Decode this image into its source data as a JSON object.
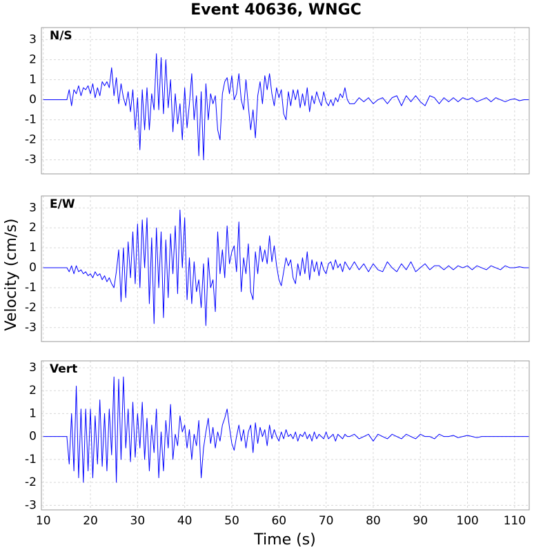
{
  "title": "Event 40636, WNGC",
  "ylabel": "Velocity (cm/s)",
  "xlabel": "Time (s)",
  "chart_data": [
    {
      "type": "line",
      "title": "N/S",
      "color": "#0000ff",
      "grid": true,
      "xlim": [
        9.6,
        113.1
      ],
      "xticks": [
        10,
        20,
        30,
        40,
        50,
        60,
        70,
        80,
        90,
        100,
        110
      ],
      "ylim": [
        -3.7,
        3.6
      ],
      "yticks": [
        -3,
        -2,
        -1,
        0,
        1,
        2,
        3
      ],
      "x": [
        10,
        12,
        14,
        15,
        15.5,
        16,
        16.5,
        17,
        17.5,
        18,
        18.5,
        19,
        19.5,
        20,
        20.5,
        21,
        21.5,
        22,
        22.5,
        23,
        23.5,
        24,
        24.5,
        25,
        25.5,
        26,
        26.5,
        27,
        27.5,
        28,
        28.5,
        29,
        29.5,
        30,
        30.5,
        31,
        31.5,
        32,
        32.5,
        33,
        33.5,
        34,
        34.5,
        35,
        35.5,
        36,
        36.5,
        37,
        37.5,
        38,
        38.5,
        39,
        39.5,
        40,
        40.5,
        41,
        41.5,
        42,
        42.5,
        43,
        43.5,
        44,
        44.5,
        45,
        45.5,
        46,
        46.5,
        47,
        47.5,
        48,
        48.5,
        49,
        49.5,
        50,
        50.5,
        51,
        51.5,
        52,
        52.5,
        53,
        53.5,
        54,
        54.5,
        55,
        55.5,
        56,
        56.5,
        57,
        57.5,
        58,
        58.5,
        59,
        59.5,
        60,
        60.5,
        61,
        61.5,
        62,
        62.5,
        63,
        63.5,
        64,
        64.5,
        65,
        65.5,
        66,
        66.5,
        67,
        67.5,
        68,
        68.5,
        69,
        69.5,
        70,
        70.5,
        71,
        71.5,
        72,
        72.5,
        73,
        73.5,
        74,
        74.5,
        75,
        76,
        77,
        78,
        79,
        80,
        81,
        82,
        83,
        84,
        85,
        86,
        87,
        88,
        89,
        90,
        91,
        92,
        93,
        94,
        95,
        96,
        97,
        98,
        99,
        100,
        101,
        102,
        103,
        104,
        105,
        106,
        107,
        108,
        109,
        110,
        111,
        112,
        113
      ],
      "values": [
        0,
        0,
        0,
        0,
        0.5,
        -0.3,
        0.5,
        0.3,
        0.7,
        0.2,
        0.6,
        0.5,
        0.7,
        0.3,
        0.8,
        0.1,
        0.6,
        0.2,
        0.9,
        0.7,
        0.9,
        0.6,
        1.6,
        0.2,
        1.1,
        -0.2,
        0.8,
        0.1,
        -0.3,
        0.4,
        -0.6,
        0.5,
        -1.5,
        0.1,
        -2.5,
        0.5,
        -1.5,
        0.6,
        -1.5,
        0.3,
        -0.5,
        2.3,
        -0.5,
        2.1,
        -0.7,
        2.0,
        -0.4,
        1.0,
        -1.6,
        0.3,
        -1.2,
        -0.2,
        -2.0,
        0.6,
        -1.4,
        -0.2,
        1.3,
        -1.0,
        0.2,
        -2.8,
        0.4,
        -3.0,
        0.8,
        -1.0,
        0.3,
        -0.2,
        0.2,
        -1.5,
        -2.0,
        0.3,
        0.9,
        1.1,
        0.3,
        1.2,
        0.0,
        0.3,
        1.3,
        0.0,
        -0.5,
        1.0,
        -0.3,
        -1.5,
        -0.5,
        -1.9,
        0.2,
        0.9,
        -0.2,
        1.2,
        0.5,
        1.3,
        0.3,
        -0.3,
        0.6,
        0.1,
        0.5,
        -0.7,
        -1.0,
        0.4,
        -0.3,
        0.5,
        0.0,
        0.5,
        -0.4,
        0.3,
        -0.3,
        0.6,
        -0.6,
        0.2,
        -0.2,
        0.4,
        0.0,
        -0.3,
        0.4,
        -0.1,
        -0.3,
        0.0,
        -0.3,
        0.1,
        -0.1,
        0.3,
        0.1,
        0.6,
        0.0,
        -0.2,
        -0.2,
        0.1,
        -0.1,
        0.1,
        -0.2,
        0.0,
        0.1,
        -0.2,
        0.1,
        0.2,
        -0.3,
        0.2,
        -0.1,
        0.2,
        -0.1,
        -0.3,
        0.2,
        0.1,
        -0.2,
        0.1,
        -0.1,
        0.1,
        -0.1,
        0.1,
        0.0,
        0.1,
        -0.1,
        0.0,
        0.1,
        -0.1,
        0.1,
        0.0,
        -0.1,
        0.0,
        0.05,
        -0.05,
        0.0,
        0.0
      ]
    },
    {
      "type": "line",
      "title": "E/W",
      "color": "#0000ff",
      "grid": true,
      "xlim": [
        9.6,
        113.1
      ],
      "xticks": [
        10,
        20,
        30,
        40,
        50,
        60,
        70,
        80,
        90,
        100,
        110
      ],
      "ylim": [
        -3.7,
        3.6
      ],
      "yticks": [
        -3,
        -2,
        -1,
        0,
        1,
        2,
        3
      ],
      "x": [
        10,
        12,
        14,
        15,
        15.5,
        16,
        16.5,
        17,
        17.5,
        18,
        18.5,
        19,
        19.5,
        20,
        20.5,
        21,
        21.5,
        22,
        22.5,
        23,
        23.5,
        24,
        24.5,
        25,
        25.5,
        26,
        26.5,
        27,
        27.5,
        28,
        28.5,
        29,
        29.5,
        30,
        30.5,
        31,
        31.5,
        32,
        32.5,
        33,
        33.5,
        34,
        34.5,
        35,
        35.5,
        36,
        36.5,
        37,
        37.5,
        38,
        38.5,
        39,
        39.5,
        40,
        40.5,
        41,
        41.5,
        42,
        42.5,
        43,
        43.5,
        44,
        44.5,
        45,
        45.5,
        46,
        46.5,
        47,
        47.5,
        48,
        48.5,
        49,
        49.5,
        50,
        50.5,
        51,
        51.5,
        52,
        52.5,
        53,
        53.5,
        54,
        54.5,
        55,
        55.5,
        56,
        56.5,
        57,
        57.5,
        58,
        58.5,
        59,
        59.5,
        60,
        60.5,
        61,
        61.5,
        62,
        62.5,
        63,
        63.5,
        64,
        64.5,
        65,
        65.5,
        66,
        66.5,
        67,
        67.5,
        68,
        68.5,
        69,
        69.5,
        70,
        70.5,
        71,
        71.5,
        72,
        72.5,
        73,
        73.5,
        74,
        74.5,
        75,
        76,
        77,
        78,
        79,
        80,
        81,
        82,
        83,
        84,
        85,
        86,
        87,
        88,
        89,
        90,
        91,
        92,
        93,
        94,
        95,
        96,
        97,
        98,
        99,
        100,
        101,
        102,
        103,
        104,
        105,
        106,
        107,
        108,
        109,
        110,
        111,
        112,
        113
      ],
      "values": [
        0,
        0,
        0,
        0,
        -0.2,
        0.1,
        -0.3,
        0.1,
        -0.2,
        -0.1,
        -0.3,
        -0.2,
        -0.4,
        -0.3,
        -0.5,
        -0.2,
        -0.4,
        -0.3,
        -0.6,
        -0.4,
        -0.7,
        -0.5,
        -0.8,
        -1.0,
        -0.2,
        0.9,
        -1.7,
        1.0,
        -1.5,
        1.3,
        -0.5,
        1.8,
        -0.8,
        2.2,
        -1.0,
        2.4,
        0.0,
        2.5,
        -1.8,
        1.5,
        -2.8,
        2.0,
        -1.0,
        1.8,
        -2.5,
        1.4,
        -1.5,
        1.7,
        -0.3,
        2.1,
        -1.3,
        2.9,
        0.0,
        2.5,
        -1.6,
        0.5,
        -1.8,
        0.3,
        -1.2,
        -0.6,
        -2.0,
        0.2,
        -2.9,
        0.5,
        -1.0,
        -0.6,
        -2.2,
        1.8,
        -0.3,
        0.9,
        -0.5,
        2.1,
        0.2,
        0.8,
        1.1,
        -0.2,
        2.3,
        -1.2,
        0.5,
        -0.3,
        1.2,
        -1.2,
        -1.6,
        0.8,
        -0.3,
        1.1,
        0.3,
        0.9,
        0.2,
        1.6,
        0.3,
        1.1,
        0.1,
        -0.6,
        -0.9,
        -0.2,
        0.5,
        0.1,
        0.4,
        -0.5,
        -0.8,
        0.2,
        -0.4,
        0.5,
        -0.3,
        0.8,
        -0.6,
        0.4,
        -0.2,
        0.3,
        -0.4,
        0.3,
        -0.1,
        -0.3,
        0.2,
        0.3,
        -0.1,
        0.4,
        0.0,
        0.2,
        -0.2,
        0.3,
        0.1,
        -0.1,
        0.3,
        -0.1,
        0.2,
        -0.2,
        0.2,
        -0.1,
        -0.2,
        0.3,
        0.0,
        -0.2,
        0.2,
        -0.1,
        0.3,
        -0.2,
        0.0,
        0.2,
        -0.1,
        0.1,
        0.1,
        -0.1,
        0.1,
        -0.1,
        0.1,
        0.0,
        0.1,
        -0.1,
        0.1,
        0.0,
        -0.1,
        0.1,
        0.0,
        -0.1,
        0.1,
        0.0,
        0.0,
        0.05,
        0.0,
        0.0
      ]
    },
    {
      "type": "line",
      "title": "Vert",
      "color": "#0000ff",
      "grid": true,
      "xlim": [
        9.6,
        113.1
      ],
      "xticks": [
        10,
        20,
        30,
        40,
        50,
        60,
        70,
        80,
        90,
        100,
        110
      ],
      "ylim": [
        -3.2,
        3.3
      ],
      "yticks": [
        -3,
        -2,
        -1,
        0,
        1,
        2,
        3
      ],
      "x": [
        10,
        12,
        14,
        15,
        15.5,
        16,
        16.5,
        17,
        17.5,
        18,
        18.5,
        19,
        19.5,
        20,
        20.5,
        21,
        21.5,
        22,
        22.5,
        23,
        23.5,
        24,
        24.5,
        25,
        25.5,
        26,
        26.5,
        27,
        27.5,
        28,
        28.5,
        29,
        29.5,
        30,
        30.5,
        31,
        31.5,
        32,
        32.5,
        33,
        33.5,
        34,
        34.5,
        35,
        35.5,
        36,
        36.5,
        37,
        37.5,
        38,
        38.5,
        39,
        39.5,
        40,
        40.5,
        41,
        41.5,
        42,
        42.5,
        43,
        43.5,
        44,
        44.5,
        45,
        45.5,
        46,
        46.5,
        47,
        47.5,
        48,
        48.5,
        49,
        49.5,
        50,
        50.5,
        51,
        51.5,
        52,
        52.5,
        53,
        53.5,
        54,
        54.5,
        55,
        55.5,
        56,
        56.5,
        57,
        57.5,
        58,
        58.5,
        59,
        59.5,
        60,
        60.5,
        61,
        61.5,
        62,
        62.5,
        63,
        63.5,
        64,
        64.5,
        65,
        65.5,
        66,
        66.5,
        67,
        67.5,
        68,
        68.5,
        69,
        69.5,
        70,
        70.5,
        71,
        71.5,
        72,
        72.5,
        73,
        73.5,
        74,
        74.5,
        75,
        76,
        77,
        78,
        79,
        80,
        81,
        82,
        83,
        84,
        85,
        86,
        87,
        88,
        89,
        90,
        91,
        92,
        93,
        94,
        95,
        96,
        97,
        98,
        99,
        100,
        101,
        102,
        103,
        104,
        105,
        106,
        107,
        108,
        109,
        110,
        111,
        112,
        113
      ],
      "values": [
        0,
        0,
        0,
        0,
        -1.2,
        1.0,
        -1.5,
        2.2,
        -1.8,
        1.2,
        -2.0,
        1.2,
        -1.5,
        1.2,
        -1.8,
        0.9,
        -1.2,
        1.6,
        -1.3,
        1.0,
        -1.5,
        1.2,
        -0.8,
        2.6,
        -2.0,
        2.5,
        -1.0,
        2.6,
        -0.5,
        1.2,
        -1.1,
        1.5,
        -0.9,
        1.0,
        -0.5,
        1.5,
        -1.0,
        0.8,
        -1.5,
        0.5,
        -0.7,
        1.2,
        -1.8,
        0.2,
        -1.5,
        0.7,
        -0.5,
        1.4,
        -1.0,
        0.1,
        -0.4,
        0.9,
        0.2,
        0.5,
        -0.5,
        0.3,
        -1.0,
        0.1,
        -0.4,
        0.7,
        -1.8,
        -0.5,
        0.2,
        0.8,
        -0.3,
        0.4,
        -0.5,
        0.2,
        -0.2,
        0.5,
        0.8,
        1.2,
        0.4,
        -0.3,
        -0.6,
        0.0,
        0.5,
        -0.2,
        0.3,
        -0.5,
        0.2,
        0.5,
        -0.7,
        0.6,
        -0.3,
        0.4,
        0.0,
        0.3,
        -0.4,
        0.5,
        -0.1,
        0.3,
        0.0,
        -0.2,
        0.2,
        -0.1,
        0.3,
        0.0,
        0.1,
        -0.1,
        0.2,
        -0.2,
        0.1,
        0.0,
        0.2,
        -0.1,
        0.1,
        -0.2,
        0.2,
        -0.1,
        0.1,
        0.0,
        -0.1,
        0.2,
        -0.1,
        0.0,
        0.1,
        -0.2,
        0.1,
        0.0,
        -0.1,
        0.1,
        0.0,
        0.0,
        0.1,
        -0.1,
        0.0,
        0.1,
        -0.2,
        0.1,
        0.0,
        -0.1,
        0.1,
        0.0,
        -0.1,
        0.1,
        0.0,
        -0.1,
        0.1,
        0.0,
        0.0,
        -0.1,
        0.1,
        0.0,
        0.0,
        0.05,
        -0.05,
        0.0,
        0.05,
        0.0,
        -0.05,
        0.0,
        0.0,
        0.0,
        0.0,
        0.0,
        0.0,
        0.0,
        0.0,
        0.0,
        0.0,
        0.0
      ]
    }
  ]
}
